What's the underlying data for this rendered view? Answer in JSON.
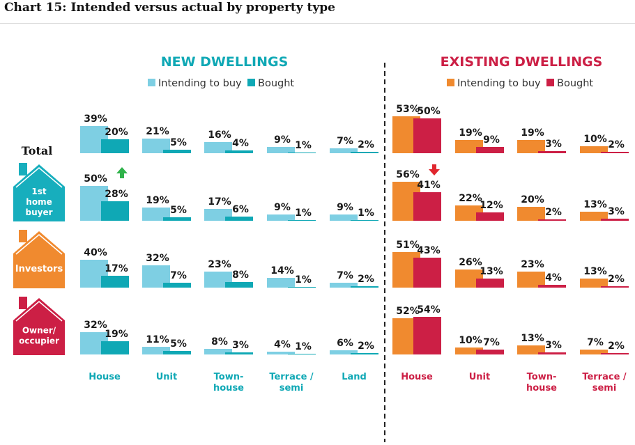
{
  "title": "Chart 15: Intended versus actual by property type",
  "colors": {
    "new_intend": "#7ecfe3",
    "new_bought": "#0fa8b5",
    "exist_intend": "#f08a2f",
    "exist_bought": "#cc1f45",
    "arrow_up": "#2fb24a",
    "arrow_down": "#e0262e",
    "house_blue": "#17aebd",
    "house_orange": "#f08a2f",
    "house_red": "#cc1f45"
  },
  "rows": [
    {
      "label": "Total",
      "icon": "none"
    },
    {
      "label": "1st home buyer",
      "label_lines": [
        "1st",
        "home",
        "buyer"
      ],
      "icon": "house-icon",
      "icon_color": "house_blue"
    },
    {
      "label": "Investors",
      "label_lines": [
        "Investors"
      ],
      "icon": "house-icon",
      "icon_color": "house_orange"
    },
    {
      "label": "Owner/ occupier",
      "label_lines": [
        "Owner/",
        "occupier"
      ],
      "icon": "house-icon",
      "icon_color": "house_red"
    }
  ],
  "chart_data": [
    {
      "type": "bar",
      "title": "NEW DWELLINGS",
      "legend": [
        "Intending to buy",
        "Bought"
      ],
      "categories": [
        "House",
        "Unit",
        "Town-house",
        "Terrace / semi",
        "Land"
      ],
      "category_lines": [
        [
          "House"
        ],
        [
          "Unit"
        ],
        [
          "Town-",
          "house"
        ],
        [
          "Terrace /",
          "semi"
        ],
        [
          "Land"
        ]
      ],
      "rows": [
        "Total",
        "1st home buyer",
        "Investors",
        "Owner/ occupier"
      ],
      "series": [
        {
          "name": "Intending to buy",
          "values": [
            [
              39,
              21,
              16,
              9,
              7
            ],
            [
              50,
              19,
              17,
              9,
              9
            ],
            [
              40,
              32,
              23,
              14,
              7
            ],
            [
              32,
              11,
              8,
              4,
              6
            ]
          ]
        },
        {
          "name": "Bought",
          "values": [
            [
              20,
              5,
              4,
              1,
              2
            ],
            [
              28,
              5,
              6,
              1,
              1
            ],
            [
              17,
              7,
              8,
              1,
              2
            ],
            [
              19,
              5,
              3,
              1,
              2
            ]
          ]
        }
      ],
      "annotations": [
        {
          "row": 1,
          "category": 0,
          "marker": "up-arrow"
        }
      ]
    },
    {
      "type": "bar",
      "title": "EXISTING DWELLINGS",
      "legend": [
        "Intending to buy",
        "Bought"
      ],
      "categories": [
        "House",
        "Unit",
        "Town-house",
        "Terrace / semi"
      ],
      "category_lines": [
        [
          "House"
        ],
        [
          "Unit"
        ],
        [
          "Town-",
          "house"
        ],
        [
          "Terrace /",
          "semi"
        ]
      ],
      "rows": [
        "Total",
        "1st home buyer",
        "Investors",
        "Owner/ occupier"
      ],
      "series": [
        {
          "name": "Intending to buy",
          "values": [
            [
              53,
              19,
              19,
              10
            ],
            [
              56,
              22,
              20,
              13
            ],
            [
              51,
              26,
              23,
              13
            ],
            [
              52,
              10,
              13,
              7
            ]
          ]
        },
        {
          "name": "Bought",
          "values": [
            [
              50,
              9,
              3,
              2
            ],
            [
              41,
              12,
              2,
              3
            ],
            [
              43,
              13,
              4,
              2
            ],
            [
              54,
              7,
              3,
              2
            ]
          ]
        }
      ],
      "annotations": [
        {
          "row": 1,
          "category": 0,
          "marker": "down-arrow"
        }
      ]
    }
  ]
}
